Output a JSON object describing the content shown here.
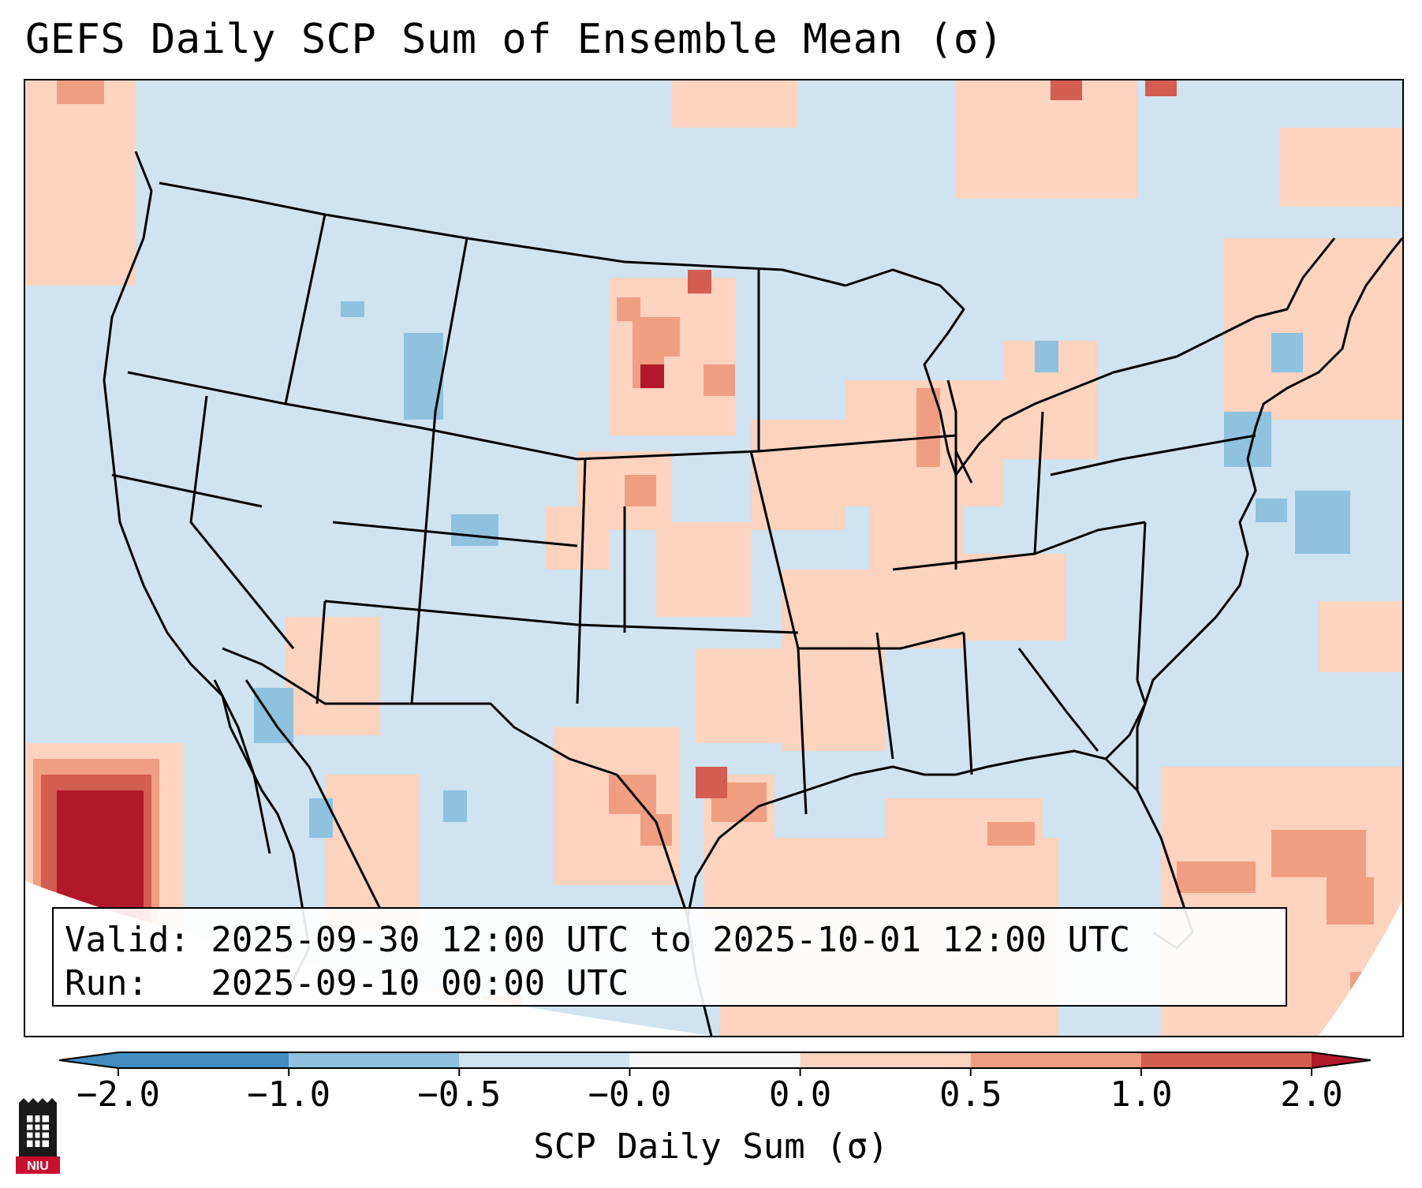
{
  "title": "GEFS Daily SCP Sum of Ensemble Mean (σ)",
  "info": {
    "valid_line": "Valid: 2025-09-30 12:00 UTC to 2025-10-01 12:00 UTC",
    "run_line": "Run:   2025-09-10 00:00 UTC"
  },
  "colorbar": {
    "label": "SCP Daily Sum (σ)",
    "ticks": [
      "−2.0",
      "−1.0",
      "−0.5",
      "−0.0",
      "0.0",
      "0.5",
      "1.0",
      "2.0"
    ],
    "colors": [
      "#3f8dc3",
      "#8ec2de",
      "#d0e3f0",
      "#f7f7f7",
      "#fbd3bf",
      "#f09e82",
      "#d35d51",
      "#b2182b"
    ]
  },
  "map": {
    "background_color": "#d0e3f0",
    "field_colors": {
      "weak_positive": "#fbd3bf",
      "moderate_positive": "#f09e82",
      "strong_positive": "#d35d51",
      "extreme_positive": "#b2182b",
      "weak_negative": "#8ec2de"
    }
  },
  "logo": {
    "text": "NIU",
    "accent": "#c8102e"
  }
}
